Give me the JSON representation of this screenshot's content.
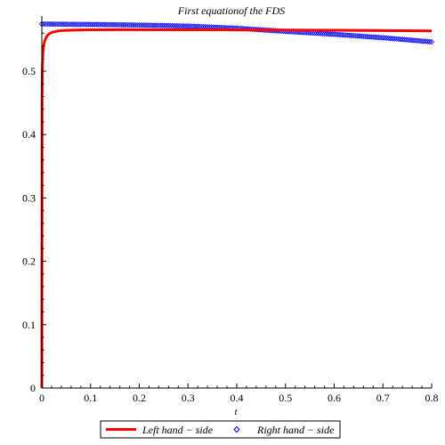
{
  "chart_data": {
    "type": "line",
    "title": "First equationof the FDS",
    "xlabel": "t",
    "ylabel": "",
    "xlim": [
      0,
      0.8
    ],
    "ylim": [
      0,
      0.58
    ],
    "xticks": [
      0,
      0.1,
      0.2,
      0.3,
      0.4,
      0.5,
      0.6,
      0.7,
      0.8
    ],
    "xtick_labels": [
      "0",
      "0.1",
      "0.2",
      "0.3",
      "0.4",
      "0.5",
      "0.6",
      "0.7",
      "0.8"
    ],
    "yticks": [
      0,
      0.1,
      0.2,
      0.3,
      0.4,
      0.5
    ],
    "ytick_labels": [
      "0",
      "0.1",
      "0.2",
      "0.3",
      "0.4",
      "0.5"
    ],
    "grid": false,
    "legend_position": "bottom",
    "series": [
      {
        "name": "Left hand − side",
        "style": "line",
        "color": "#ff0000",
        "x": [
          0,
          0.0005,
          0.001,
          0.002,
          0.003,
          0.005,
          0.0075,
          0.01,
          0.015,
          0.02,
          0.03,
          0.04,
          0.05,
          0.07,
          0.1,
          0.15,
          0.2,
          0.3,
          0.4,
          0.5,
          0.6,
          0.7,
          0.8
        ],
        "y": [
          0,
          0.46,
          0.5,
          0.525,
          0.535,
          0.545,
          0.551,
          0.555,
          0.559,
          0.561,
          0.563,
          0.564,
          0.5645,
          0.565,
          0.5653,
          0.5655,
          0.5655,
          0.5654,
          0.5652,
          0.565,
          0.5646,
          0.5641,
          0.5635
        ]
      },
      {
        "name": "Right hand − side",
        "style": "markers",
        "marker": "diamond",
        "color": "#0000ff",
        "x_start": 0,
        "x_end": 0.8,
        "x_step": 0.004,
        "y_points": [
          [
            0,
            0.5745
          ],
          [
            0.1,
            0.5738
          ],
          [
            0.2,
            0.5728
          ],
          [
            0.3,
            0.5712
          ],
          [
            0.4,
            0.5678
          ],
          [
            0.5,
            0.5628
          ],
          [
            0.6,
            0.5582
          ],
          [
            0.7,
            0.5528
          ],
          [
            0.8,
            0.5462
          ]
        ]
      }
    ]
  }
}
